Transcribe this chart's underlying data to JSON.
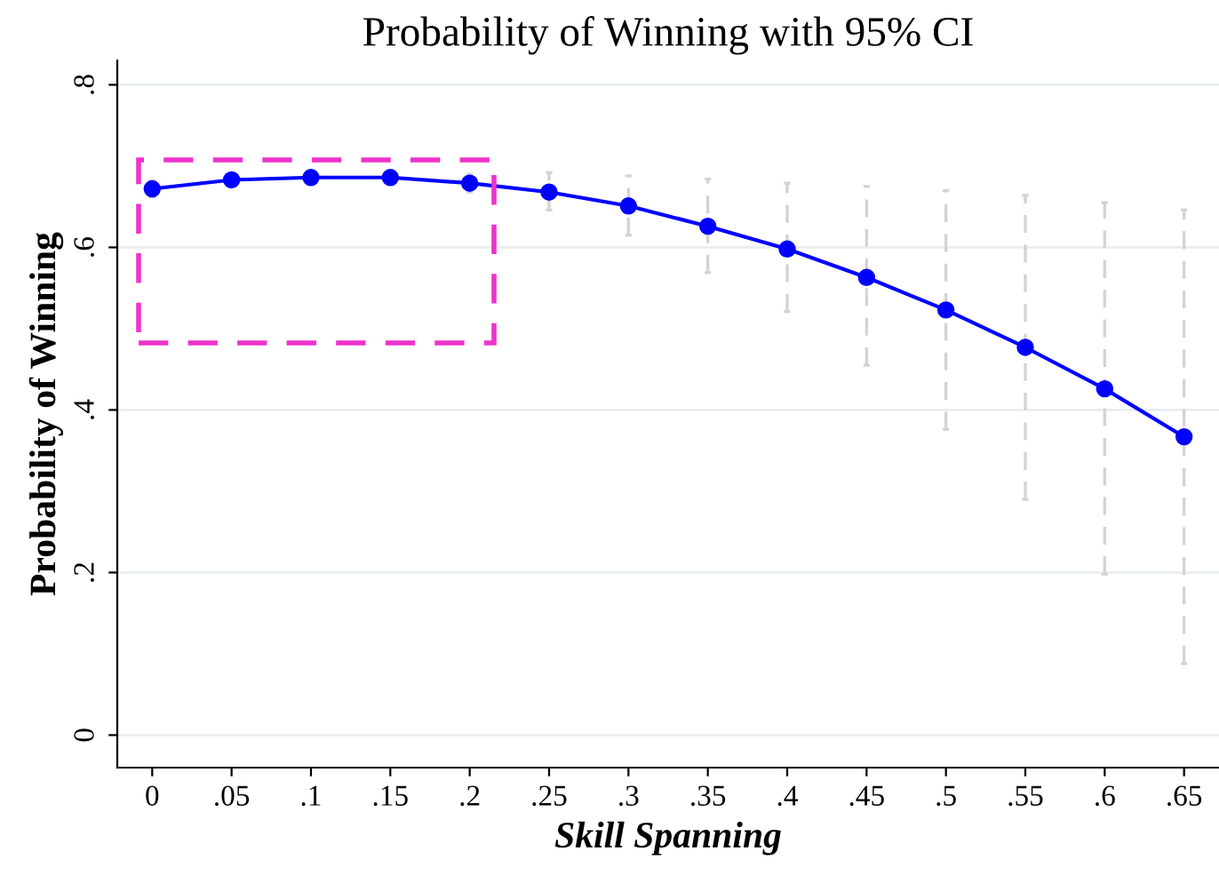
{
  "chart_data": {
    "type": "line",
    "title": "Probability of Winning with 95% CI",
    "xlabel": "Skill Spanning",
    "ylabel": "Probability of Winning",
    "x": [
      0,
      0.05,
      0.1,
      0.15,
      0.2,
      0.25,
      0.3,
      0.35,
      0.4,
      0.45,
      0.5,
      0.55,
      0.6,
      0.65
    ],
    "series": [
      {
        "color": "#0000ff",
        "values": [
          0.672,
          0.683,
          0.686,
          0.686,
          0.679,
          0.668,
          0.651,
          0.626,
          0.598,
          0.563,
          0.523,
          0.477,
          0.426,
          0.367
        ],
        "errors": [
          [
            0.662,
            0.682
          ],
          [
            0.676,
            0.69
          ],
          [
            0.678,
            0.694
          ],
          [
            0.678,
            0.694
          ],
          [
            0.668,
            0.69
          ],
          [
            0.646,
            0.692
          ],
          [
            0.615,
            0.688
          ],
          [
            0.569,
            0.684
          ],
          [
            0.521,
            0.679
          ],
          [
            0.455,
            0.675
          ],
          [
            0.376,
            0.67
          ],
          [
            0.29,
            0.664
          ],
          [
            0.198,
            0.655
          ],
          [
            0.088,
            0.646
          ]
        ]
      }
    ],
    "marker": "circle",
    "line_style": "solid",
    "grid": "y",
    "xlim": [
      -0.022,
      0.672
    ],
    "ylim": [
      -0.04,
      0.83
    ],
    "xticks": [
      0,
      {
        "value": 0.05,
        "label": ".05"
      },
      {
        "value": 0.1,
        "label": ".1"
      },
      {
        "value": 0.15,
        "label": ".15"
      },
      {
        "value": 0.2,
        "label": ".2"
      },
      {
        "value": 0.25,
        "label": ".25"
      },
      {
        "value": 0.3,
        "label": ".3"
      },
      {
        "value": 0.35,
        "label": ".35"
      },
      {
        "value": 0.4,
        "label": ".4"
      },
      {
        "value": 0.45,
        "label": ".45"
      },
      {
        "value": 0.5,
        "label": ".5"
      },
      {
        "value": 0.55,
        "label": ".55"
      },
      {
        "value": 0.6,
        "label": ".6"
      },
      {
        "value": 0.65,
        "label": ".65"
      }
    ],
    "yticks": [
      0,
      {
        "value": 0.2,
        "label": ".2"
      },
      {
        "value": 0.4,
        "label": ".4"
      },
      {
        "value": 0.6,
        "label": ".6"
      },
      {
        "value": 0.8,
        "label": ".8"
      }
    ]
  }
}
